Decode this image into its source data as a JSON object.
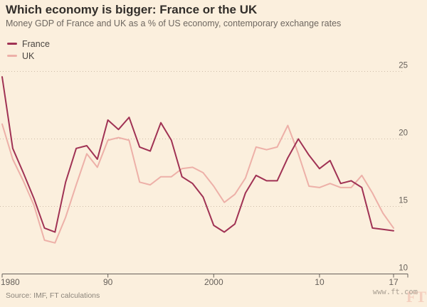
{
  "chart_data": {
    "type": "line",
    "title": "Which economy is bigger: France or the UK",
    "subtitle": "Money GDP of France and UK as a % of US economy, contemporary exchange rates",
    "x": [
      1980,
      1981,
      1982,
      1983,
      1984,
      1985,
      1986,
      1987,
      1988,
      1989,
      1990,
      1991,
      1992,
      1993,
      1994,
      1995,
      1996,
      1997,
      1998,
      1999,
      2000,
      2001,
      2002,
      2003,
      2004,
      2005,
      2006,
      2007,
      2008,
      2009,
      2010,
      2011,
      2012,
      2013,
      2014,
      2015,
      2016,
      2017
    ],
    "series": [
      {
        "name": "France",
        "color": "#A03254",
        "values": [
          24.6,
          19.3,
          17.5,
          15.6,
          13.4,
          13.1,
          16.8,
          19.3,
          19.5,
          18.5,
          21.4,
          20.7,
          21.6,
          19.4,
          19.1,
          21.2,
          19.9,
          17.2,
          16.7,
          15.7,
          13.6,
          13.1,
          13.7,
          16.0,
          17.3,
          16.9,
          16.9,
          18.6,
          20.0,
          18.8,
          17.8,
          18.4,
          16.7,
          16.9,
          16.4,
          13.4,
          13.3,
          13.2
        ]
      },
      {
        "name": "UK",
        "color": "#EDB0A8",
        "values": [
          21.1,
          18.5,
          16.9,
          15.1,
          12.5,
          12.3,
          14.2,
          16.6,
          18.9,
          17.9,
          19.9,
          20.1,
          19.9,
          16.8,
          16.6,
          17.2,
          17.2,
          17.8,
          17.9,
          17.5,
          16.5,
          15.3,
          15.9,
          17.1,
          19.4,
          19.2,
          19.4,
          21.0,
          18.9,
          16.5,
          16.4,
          16.7,
          16.4,
          16.4,
          17.3,
          16.0,
          14.5,
          13.4
        ]
      }
    ],
    "xlabel": "",
    "ylabel": "",
    "xlim": [
      1980,
      2017
    ],
    "ylim": [
      10,
      25
    ],
    "x_ticks": [
      {
        "value": 1980,
        "label": "1980"
      },
      {
        "value": 1990,
        "label": "90"
      },
      {
        "value": 2000,
        "label": "2000"
      },
      {
        "value": 2010,
        "label": "10"
      },
      {
        "value": 2017,
        "label": "17"
      }
    ],
    "y_ticks": [
      {
        "value": 25,
        "label": "25"
      },
      {
        "value": 20,
        "label": "20"
      },
      {
        "value": 15,
        "label": "15"
      },
      {
        "value": 10,
        "label": "10"
      }
    ],
    "grid": "horizontal-dotted",
    "legend_position": "top-left"
  },
  "footer": {
    "source": "Source: IMF, FT calculations",
    "watermark": "www.ft.com",
    "logo": "FT"
  },
  "colors": {
    "background": "#FBEFDD",
    "title": "#322E2A",
    "subtitle": "#6E6760",
    "axis": "#66605A",
    "grid": "#CDBCA8",
    "source": "#8C857B",
    "watermark": "#A99F92",
    "logo": "#F4CFBF"
  }
}
